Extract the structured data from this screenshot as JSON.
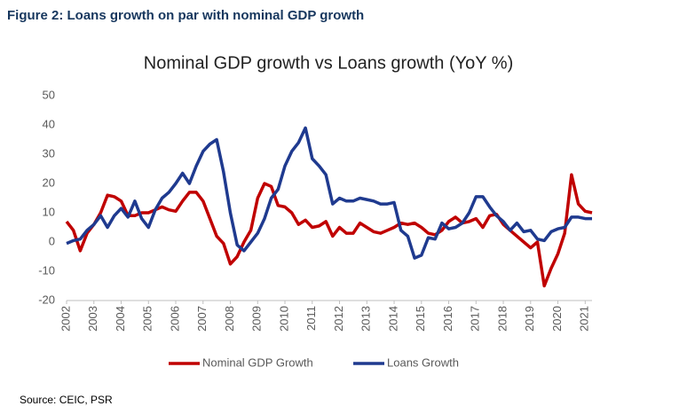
{
  "chart_data": {
    "type": "line",
    "caption": "Figure 2: Loans growth on par with nominal GDP growth",
    "title": "Nominal GDP growth vs Loans growth (YoY %)",
    "source": "Source: CEIC, PSR",
    "legend": "bottom",
    "grid": false,
    "xlim": [
      2002,
      2021.25
    ],
    "xticks": [
      2002,
      2003,
      2004,
      2005,
      2006,
      2007,
      2008,
      2009,
      2010,
      2011,
      2012,
      2013,
      2014,
      2015,
      2016,
      2017,
      2018,
      2019,
      2020,
      2021
    ],
    "ylim": [
      -20,
      50
    ],
    "yticks": [
      -20,
      -10,
      0,
      10,
      20,
      30,
      40,
      50
    ],
    "x": [
      2002,
      2002.25,
      2002.5,
      2002.75,
      2003,
      2003.25,
      2003.5,
      2003.75,
      2004,
      2004.25,
      2004.5,
      2004.75,
      2005,
      2005.25,
      2005.5,
      2005.75,
      2006,
      2006.25,
      2006.5,
      2006.75,
      2007,
      2007.25,
      2007.5,
      2007.75,
      2008,
      2008.25,
      2008.5,
      2008.75,
      2009,
      2009.25,
      2009.5,
      2009.75,
      2010,
      2010.25,
      2010.5,
      2010.75,
      2011,
      2011.25,
      2011.5,
      2011.75,
      2012,
      2012.25,
      2012.5,
      2012.75,
      2013,
      2013.25,
      2013.5,
      2013.75,
      2014,
      2014.25,
      2014.5,
      2014.75,
      2015,
      2015.25,
      2015.5,
      2015.75,
      2016,
      2016.25,
      2016.5,
      2016.75,
      2017,
      2017.25,
      2017.5,
      2017.75,
      2018,
      2018.25,
      2018.5,
      2018.75,
      2019,
      2019.25,
      2019.5,
      2019.75,
      2020,
      2020.25,
      2020.5,
      2020.75,
      2021,
      2021.25
    ],
    "series": [
      {
        "name": "Nominal GDP Growth",
        "color": "#c00000",
        "values": [
          7,
          4,
          -3,
          3,
          6,
          10,
          16,
          15.5,
          14,
          9,
          9,
          10,
          10,
          11,
          12,
          11,
          10.5,
          14,
          17,
          17,
          14,
          8,
          2,
          -0.5,
          -7.5,
          -5,
          0,
          4,
          15,
          20,
          19,
          12.5,
          12,
          10,
          6,
          7.5,
          5,
          5.5,
          7,
          2,
          5,
          3,
          3,
          6.5,
          5,
          3.5,
          3,
          4,
          5,
          6.5,
          6,
          6.5,
          5,
          3,
          2.5,
          4,
          7,
          8.5,
          6.5,
          7,
          8,
          5,
          9,
          9.5,
          6,
          4,
          2,
          0,
          -2,
          0,
          -15,
          -9,
          -4,
          3,
          23,
          13,
          10.5,
          10
        ]
      },
      {
        "name": "Loans Growth",
        "color": "#1f3a8f",
        "values": [
          -0.5,
          0.5,
          1,
          4,
          6,
          9,
          5,
          9,
          11.5,
          8.5,
          14,
          8,
          5,
          11,
          15,
          17,
          20,
          23.5,
          20,
          26,
          31,
          33.5,
          35,
          24,
          10,
          -1,
          -3,
          0,
          3,
          8,
          15,
          18,
          26,
          31,
          34,
          39,
          28.5,
          26,
          23,
          13,
          15,
          14,
          14,
          15,
          14.5,
          14,
          13,
          13,
          13.5,
          4,
          2,
          -5.5,
          -4.5,
          1.5,
          1,
          6.5,
          4.5,
          5,
          6.5,
          10,
          15.5,
          15.5,
          12,
          9,
          7,
          4,
          6.5,
          3.5,
          4,
          1,
          0.5,
          3.5,
          4.5,
          5,
          8.5,
          8.5,
          8,
          8
        ]
      }
    ]
  }
}
